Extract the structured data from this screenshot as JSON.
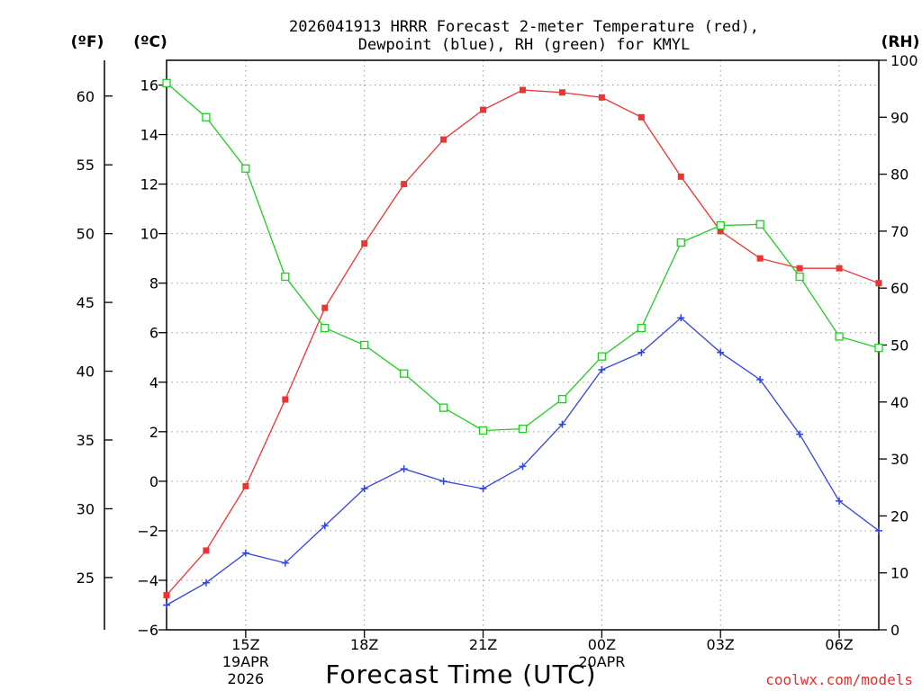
{
  "chart_data": {
    "type": "line",
    "title_lines": [
      "2026041913 HRRR Forecast 2-meter Temperature (red),",
      "Dewpoint (blue), RH (green) for KMYL"
    ],
    "xlabel": "Forecast Time (UTC)",
    "credit": "coolwx.com/models",
    "units": {
      "fahrenheit": "(ºF)",
      "celsius": "(ºC)",
      "rh": "(RH)"
    },
    "x_hours_utc": [
      13,
      14,
      15,
      16,
      17,
      18,
      19,
      20,
      21,
      22,
      23,
      24,
      25,
      26,
      27,
      28,
      29,
      30,
      31
    ],
    "x_range": [
      13,
      31
    ],
    "celsius_axis": {
      "range": [
        -6,
        17
      ],
      "ticks": [
        -6,
        -4,
        -2,
        0,
        2,
        4,
        6,
        8,
        10,
        12,
        14,
        16
      ]
    },
    "fahrenheit_axis": {
      "range": [
        21.2,
        62.6
      ],
      "ticks": [
        25,
        30,
        35,
        40,
        45,
        50,
        55,
        60
      ]
    },
    "rh_axis": {
      "range": [
        0,
        100
      ],
      "ticks": [
        0,
        10,
        20,
        30,
        40,
        50,
        60,
        70,
        80,
        90,
        100
      ]
    },
    "x_ticks": [
      {
        "hour": 15,
        "lines": [
          "15Z",
          "19APR",
          "2026"
        ]
      },
      {
        "hour": 18,
        "lines": [
          "18Z"
        ]
      },
      {
        "hour": 21,
        "lines": [
          "21Z"
        ]
      },
      {
        "hour": 24,
        "lines": [
          "00Z",
          "20APR"
        ]
      },
      {
        "hour": 27,
        "lines": [
          "03Z"
        ]
      },
      {
        "hour": 30,
        "lines": [
          "06Z"
        ]
      }
    ],
    "series": [
      {
        "name": "2-meter Temperature",
        "color": "#ee3333",
        "axis": "celsius",
        "marker": "filled-square",
        "values": [
          -4.6,
          -2.8,
          -0.2,
          3.3,
          7.0,
          9.6,
          12.0,
          13.8,
          15.0,
          15.8,
          15.7,
          15.5,
          14.7,
          12.3,
          10.1,
          9.0,
          8.6,
          8.6,
          8.0
        ]
      },
      {
        "name": "Dewpoint",
        "color": "#3344dd",
        "axis": "celsius",
        "marker": "plus",
        "values": [
          -5.0,
          -4.1,
          -2.9,
          -3.3,
          -1.8,
          -0.3,
          0.5,
          0.0,
          -0.3,
          0.6,
          2.3,
          4.5,
          5.2,
          6.6,
          5.2,
          4.1,
          1.9,
          -0.8,
          -2.0
        ]
      },
      {
        "name": "RH",
        "color": "#22cc22",
        "axis": "rh",
        "marker": "open-square",
        "values": [
          96,
          90,
          81,
          62,
          53,
          50,
          45,
          39,
          35,
          35.3,
          40.5,
          48,
          53,
          68,
          71,
          71.2,
          62,
          51.5,
          49.5
        ]
      }
    ]
  }
}
